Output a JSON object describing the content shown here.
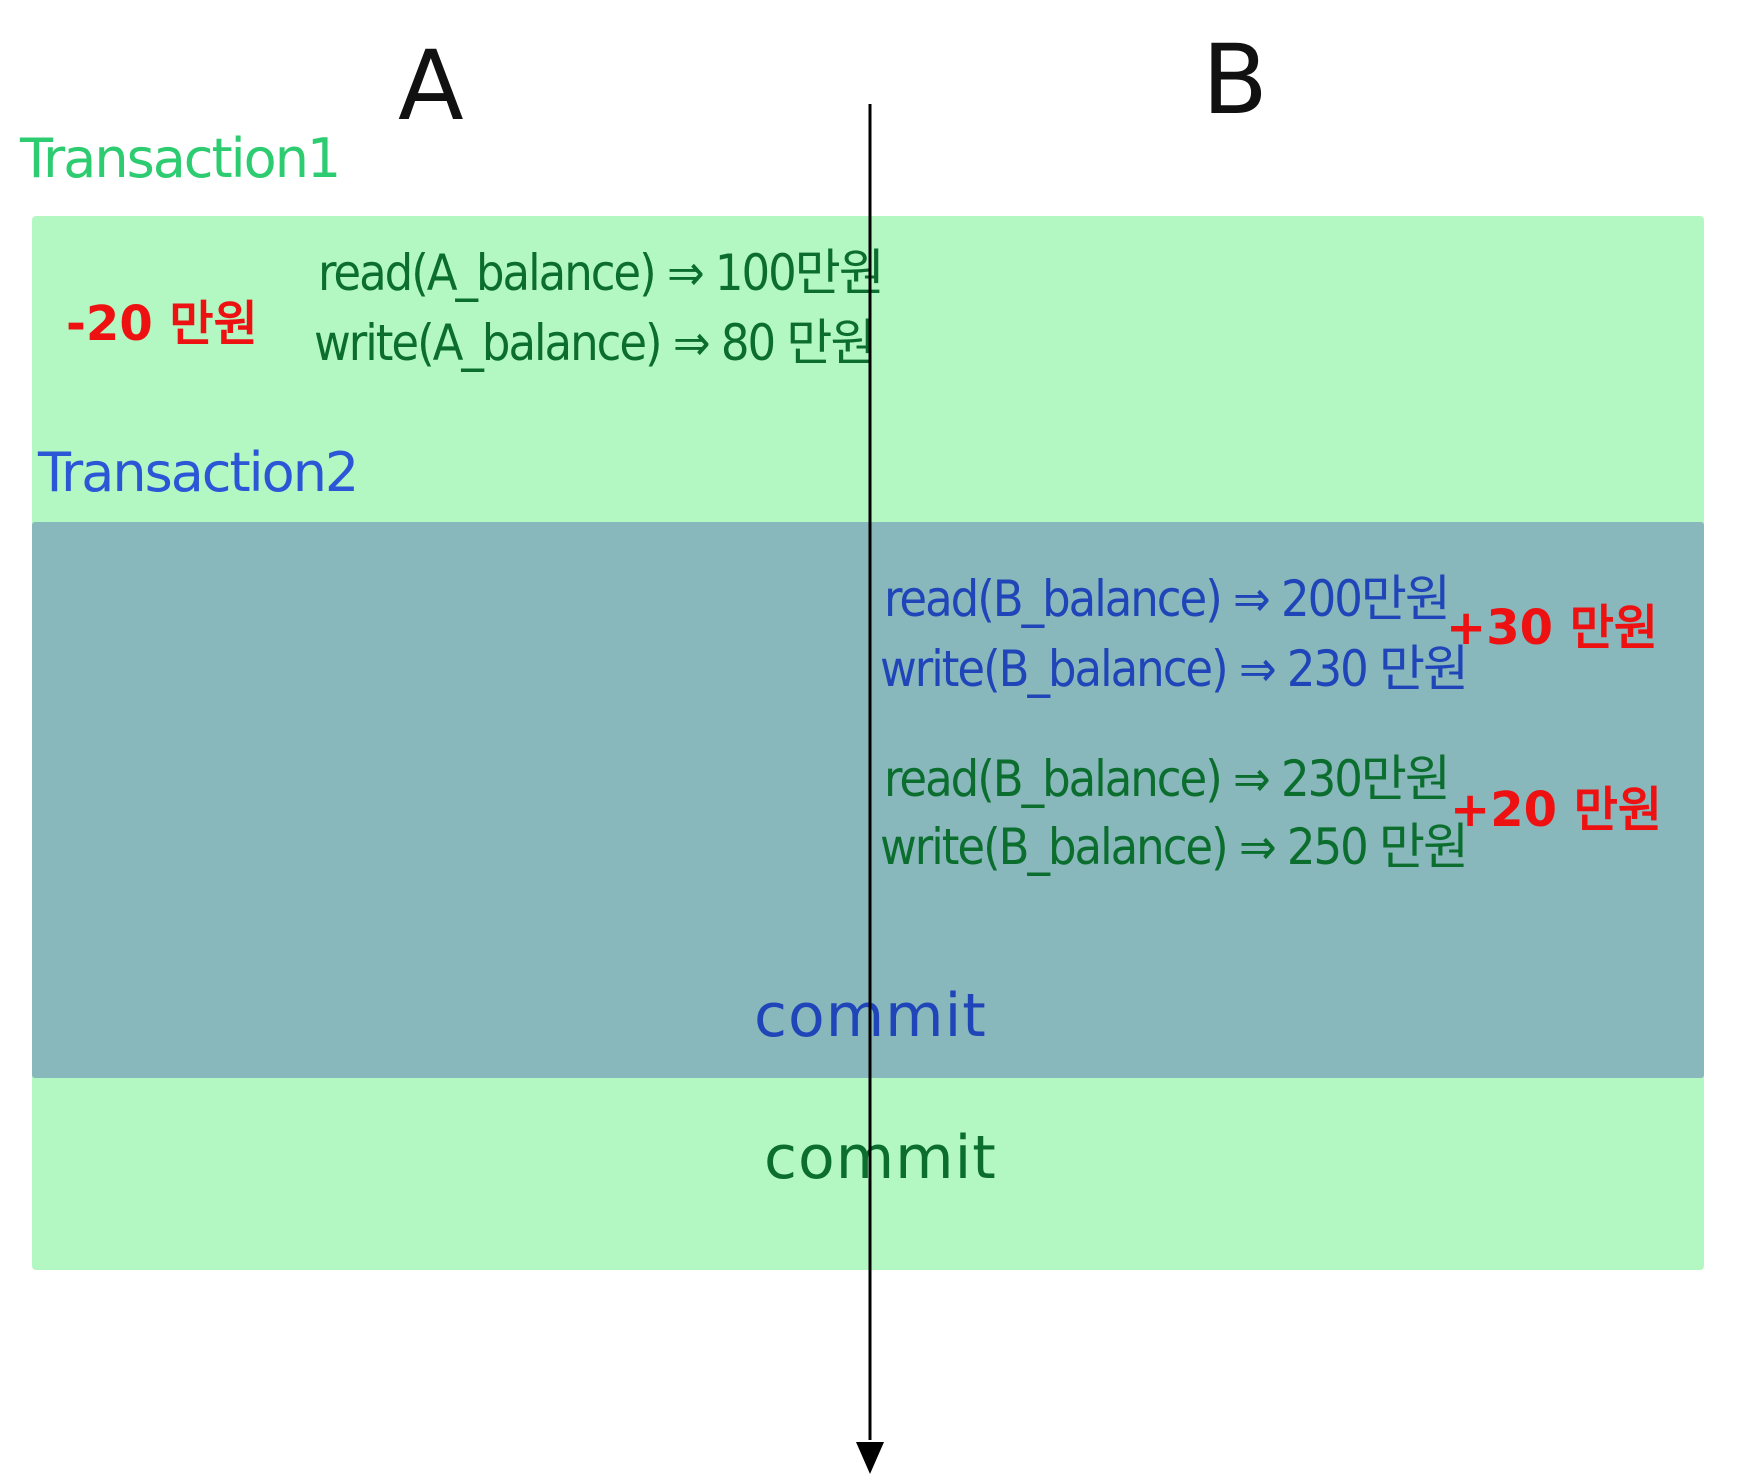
{
  "columns": {
    "a": "A",
    "b": "B"
  },
  "colors": {
    "t1_band": "#b3f7c3",
    "t2_band": "#88b8bc",
    "t1_text": "#2ecc71",
    "t1_ops": "#0b6e2e",
    "t2_text": "#2b57d6",
    "t2_ops": "#1f45b8",
    "delta": "#ee1111",
    "axis": "#000000"
  },
  "transaction1": {
    "label": "Transaction1",
    "delta": "-20 만원",
    "op1": "read(A_balance) ⇒ 100만원",
    "op2": "write(A_balance) ⇒ 80 만원",
    "commit": "commit"
  },
  "transaction2": {
    "label": "Transaction2",
    "delta": "+30 만원",
    "op1": "read(B_balance) ⇒ 200만원",
    "op2": "write(B_balance) ⇒ 230 만원",
    "commit": "commit"
  },
  "transaction1_b": {
    "delta": "+20 만원",
    "op1": "read(B_balance) ⇒ 230만원",
    "op2": "write(B_balance) ⇒ 250 만원"
  }
}
